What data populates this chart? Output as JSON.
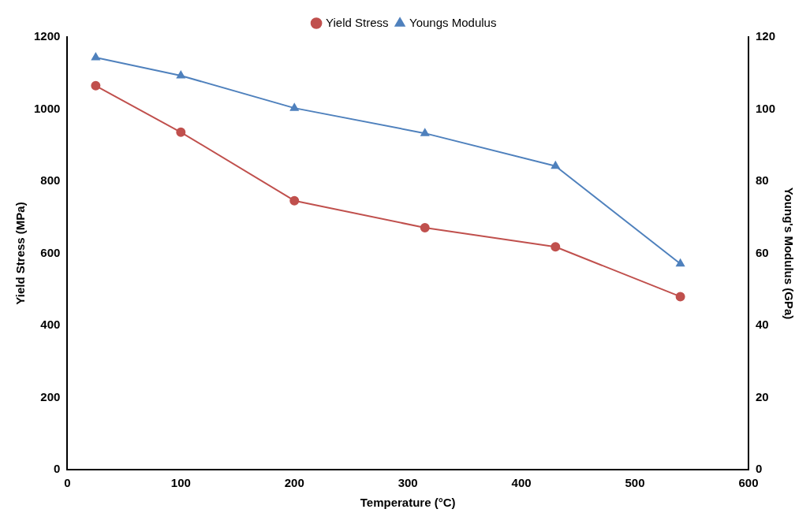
{
  "chart_data": {
    "type": "line",
    "xlabel": "Temperature (°C)",
    "ylabel": "Yield Stress (MPa)",
    "y2label": "Young's Modulus (GPa)",
    "x": [
      25,
      100,
      200,
      315,
      430,
      540
    ],
    "xlim": [
      0,
      600
    ],
    "xticks": [
      0,
      100,
      200,
      300,
      400,
      500,
      600
    ],
    "ylim": [
      0,
      1200
    ],
    "yticks": [
      0,
      200,
      400,
      600,
      800,
      1000,
      1200
    ],
    "y2lim": [
      0,
      120
    ],
    "y2ticks": [
      0,
      20,
      40,
      60,
      80,
      100,
      120
    ],
    "grid": false,
    "legend": "top",
    "line_style": "solid",
    "series": [
      {
        "name": "Yield Stress",
        "color": "#c0504d",
        "marker": "circle",
        "values": [
          1065,
          936,
          746,
          671,
          618,
          480
        ]
      },
      {
        "name": "Youngs Modulus",
        "color": "#4f81bd",
        "marker": "triangle",
        "axis": "y2",
        "values": [
          114.3,
          109.3,
          100.3,
          93.3,
          84.2,
          57.1
        ]
      }
    ]
  }
}
